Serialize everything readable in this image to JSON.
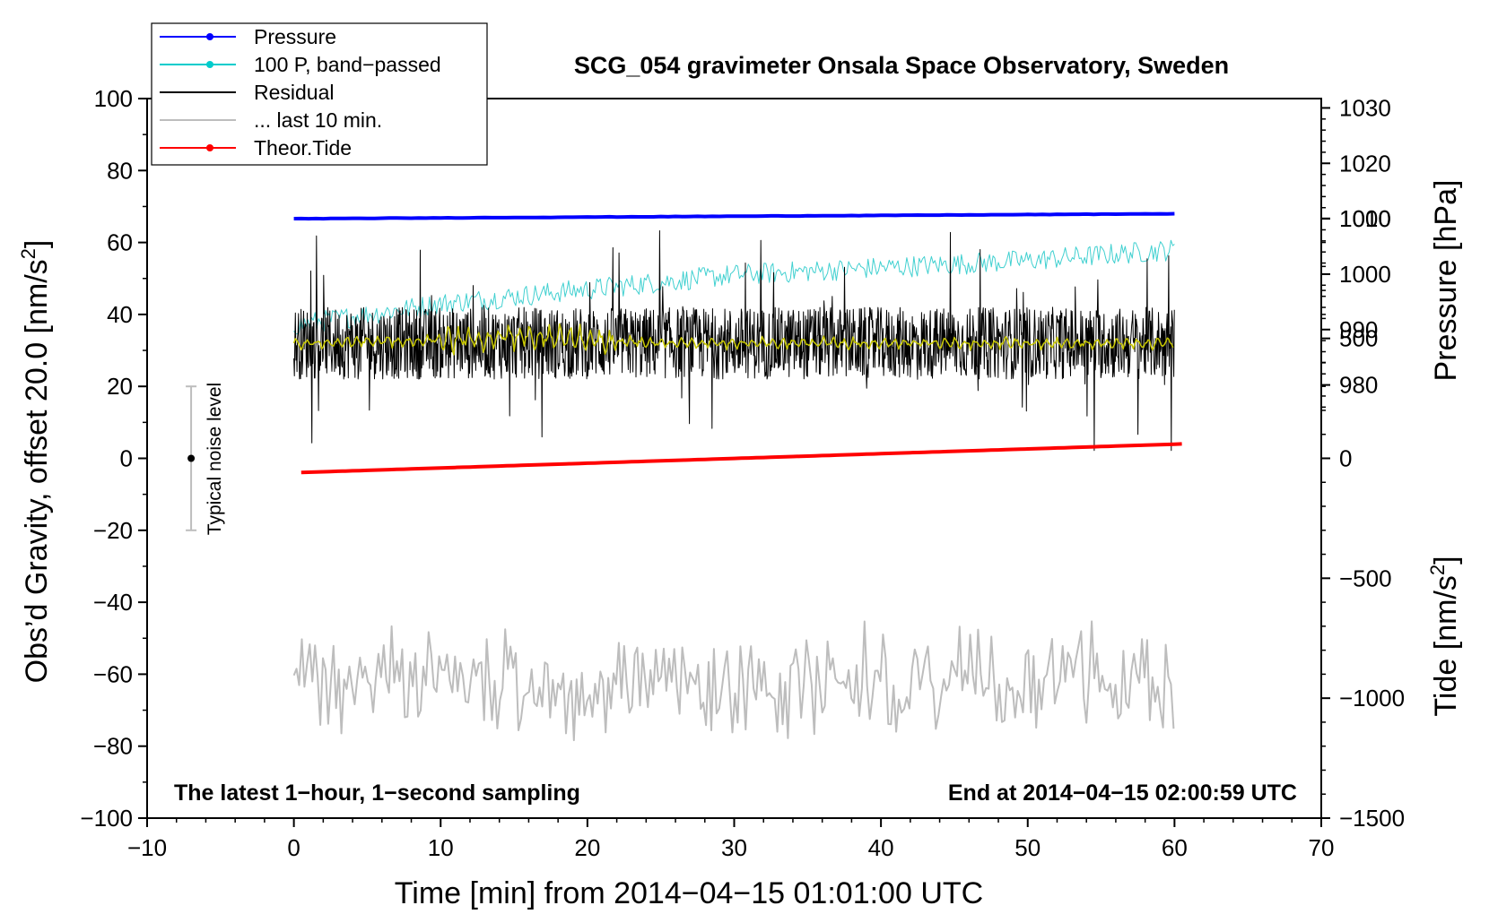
{
  "chart_data": {
    "type": "line",
    "title": "SCG_054 gravimeter Onsala Space Observatory, Sweden",
    "xlabel": "Time [min] from 2014−04−15 01:01:00 UTC",
    "ylabel_main": "Obs’d Gravity, offset 20.0 [nm/s",
    "ylabel_pressure": "Pressure [hPa]",
    "ylabel_tide": "Tide [nm/s",
    "unit_exponent": "2",
    "bracket_close": "]",
    "xlim": [
      -10,
      70
    ],
    "ylim_main": [
      -100,
      100
    ],
    "xticks": [
      "−10",
      "0",
      "10",
      "20",
      "30",
      "40",
      "50",
      "60",
      "70"
    ],
    "xtick_values": [
      -10,
      0,
      10,
      20,
      30,
      40,
      50,
      60,
      70
    ],
    "yticks_main": [
      "100",
      "80",
      "60",
      "40",
      "20",
      "0",
      "−20",
      "−40",
      "−60",
      "−80",
      "−100"
    ],
    "ytick_values_main": [
      100,
      80,
      60,
      40,
      20,
      0,
      -20,
      -40,
      -60,
      -80,
      -100
    ],
    "pressure_axis": {
      "ticks": [
        "1030",
        "1020",
        "1010",
        "1000",
        "990",
        "980"
      ],
      "values": [
        1030,
        1020,
        1010,
        1000,
        990,
        980
      ],
      "main_y_at_980": 20.4,
      "main_y_per_hpa": 1.54
    },
    "tide_axis": {
      "ticks": [
        "1000",
        "500",
        "0",
        "−500",
        "−1000",
        "−1500"
      ],
      "values": [
        1000,
        500,
        0,
        -500,
        -1000,
        -1500
      ],
      "main_y_at_minus1500": -100,
      "main_y_per_unit": 0.06667
    },
    "legend": {
      "position": "top-left",
      "entries": [
        {
          "label": "Pressure",
          "color": "#0000ff",
          "marker": true
        },
        {
          "label": "100 P, band−passed",
          "color": "#00cccc",
          "marker": true
        },
        {
          "label": "Residual",
          "color": "#000000",
          "marker": false
        },
        {
          "label": "... last 10 min.",
          "color": "#bdbdbd",
          "marker": false
        },
        {
          "label": "Theor.Tide",
          "color": "#ff0000",
          "marker": true
        }
      ]
    },
    "annotations": {
      "left_bottom": "The latest 1−hour, 1−second sampling",
      "right_bottom": "End at 2014−04−15 02:00:59 UTC",
      "noise_label": "Typical noise level",
      "noise_bar": {
        "x": -7,
        "center": 0,
        "low": -20,
        "high": 20
      }
    },
    "series": [
      {
        "name": "Pressure",
        "color": "#0000ff",
        "axis": "pressure",
        "x": [
          0,
          60
        ],
        "values": [
          1010.0,
          1010.9
        ]
      },
      {
        "name": "100 P, band−passed",
        "color": "#40d0d0",
        "axis": "main",
        "x": [
          0,
          10,
          20,
          30,
          40,
          50,
          60
        ],
        "values": [
          37,
          43,
          47,
          51,
          53,
          55,
          58
        ],
        "noise_amplitude": 3
      },
      {
        "name": "Residual",
        "color": "#000000",
        "axis": "main",
        "x": [
          0,
          60
        ],
        "values": [
          32,
          32
        ],
        "noise_amplitude": 10,
        "spike_range": [
          2,
          66
        ]
      },
      {
        "name": "Residual (smoothed)",
        "color": "#c8c800",
        "axis": "main",
        "x": [
          0,
          12,
          15,
          20,
          25,
          60
        ],
        "values": [
          32,
          33,
          34,
          33,
          32,
          32
        ],
        "noise_amplitude": 2
      },
      {
        "name": "... last 10 min.",
        "color": "#bdbdbd",
        "axis": "main",
        "x": [
          0,
          60
        ],
        "values": [
          -62,
          -62
        ],
        "noise_amplitude": 10
      },
      {
        "name": "Theor.Tide",
        "color": "#ff0000",
        "axis": "tide",
        "x": [
          0,
          60.5
        ],
        "values": [
          -60,
          60
        ]
      }
    ]
  }
}
